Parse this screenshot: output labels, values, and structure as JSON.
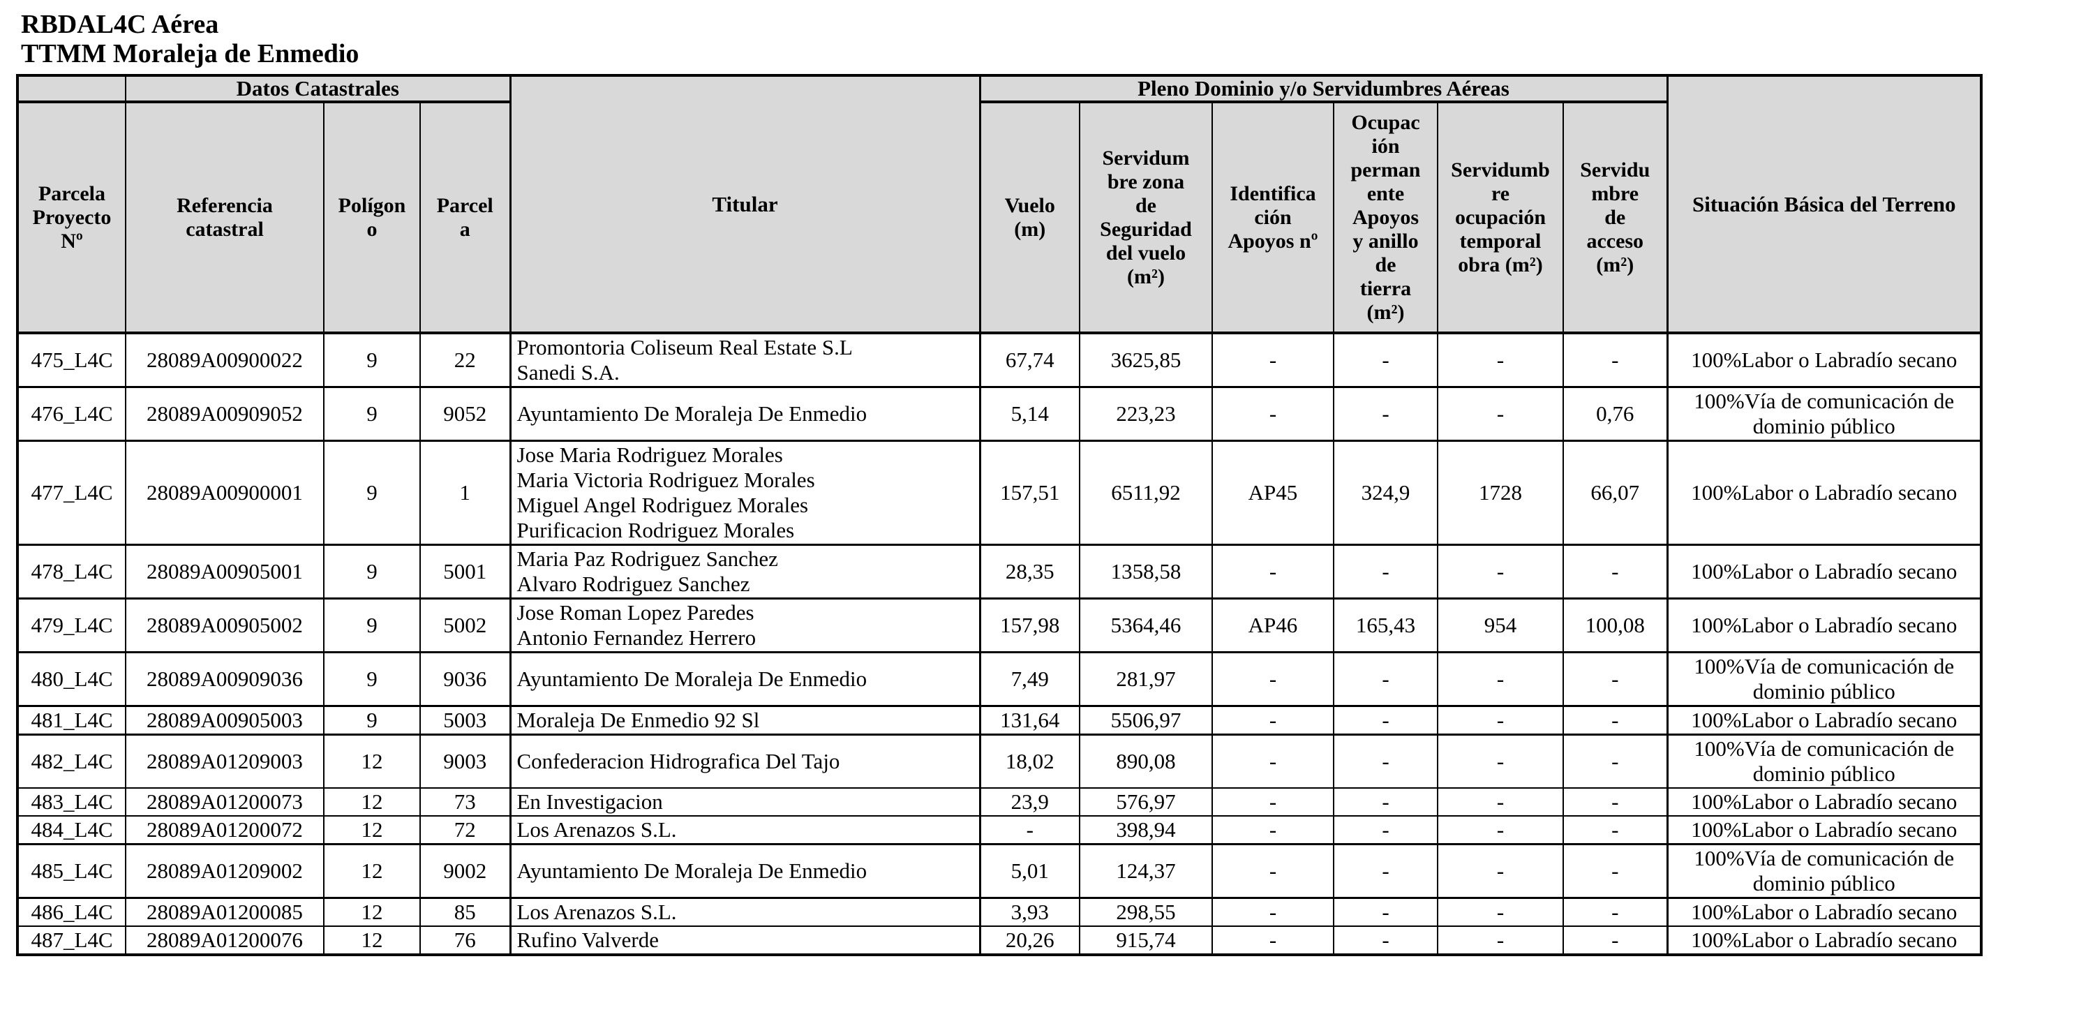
{
  "doc": {
    "title_line1": "RBDAL4C Aérea",
    "title_line2": "TTMM Moraleja de Enmedio"
  },
  "table": {
    "group_headers": {
      "datos": "Datos Catastrales",
      "pleno": "Pleno Dominio y/o Servidumbres Aéreas"
    },
    "columns": [
      {
        "key": "parcela_proyecto",
        "label": "Parcela\nProyecto\nNº"
      },
      {
        "key": "referencia_catastral",
        "label": "Referencia\ncatastral"
      },
      {
        "key": "poligono",
        "label": "Polígon\no"
      },
      {
        "key": "parcela",
        "label": "Parcel\na"
      },
      {
        "key": "titular",
        "label": "Titular"
      },
      {
        "key": "vuelo",
        "label": "Vuelo\n(m)"
      },
      {
        "key": "servidumbre_zona",
        "label": "Servidum\nbre zona\nde\nSeguridad\ndel vuelo\n(m²)"
      },
      {
        "key": "identificacion_apoyos",
        "label": "Identifica\nción\nApoyos nº"
      },
      {
        "key": "ocupacion_permanente",
        "label": "Ocupac\nión\nperman\nente\nApoyos\ny anillo\nde\ntierra\n(m²)"
      },
      {
        "key": "servidumbre_temporal",
        "label": "Servidumb\nre\nocupación\ntemporal\nobra (m²)"
      },
      {
        "key": "servidumbre_acceso",
        "label": "Servidu\nmbre\nde\nacceso\n(m²)"
      },
      {
        "key": "situacion",
        "label": "Situación Básica del Terreno"
      }
    ],
    "rows": [
      {
        "parcela_proyecto": "475_L4C",
        "referencia_catastral": "28089A00900022",
        "poligono": "9",
        "parcela": "22",
        "titular": "Promontoria Coliseum Real Estate S.L\nSanedi S.A.",
        "vuelo": "67,74",
        "servidumbre_zona": "3625,85",
        "identificacion_apoyos": "-",
        "ocupacion_permanente": "-",
        "servidumbre_temporal": "-",
        "servidumbre_acceso": "-",
        "situacion": "100%Labor o Labradío secano"
      },
      {
        "parcela_proyecto": "476_L4C",
        "referencia_catastral": "28089A00909052",
        "poligono": "9",
        "parcela": "9052",
        "titular": "Ayuntamiento De Moraleja De Enmedio",
        "vuelo": "5,14",
        "servidumbre_zona": "223,23",
        "identificacion_apoyos": "-",
        "ocupacion_permanente": "-",
        "servidumbre_temporal": "-",
        "servidumbre_acceso": "0,76",
        "situacion": "100%Vía de comunicación de dominio público"
      },
      {
        "parcela_proyecto": "477_L4C",
        "referencia_catastral": "28089A00900001",
        "poligono": "9",
        "parcela": "1",
        "titular": "Jose Maria Rodriguez Morales\nMaria Victoria Rodriguez Morales\nMiguel Angel Rodriguez Morales\nPurificacion Rodriguez Morales",
        "vuelo": "157,51",
        "servidumbre_zona": "6511,92",
        "identificacion_apoyos": "AP45",
        "ocupacion_permanente": "324,9",
        "servidumbre_temporal": "1728",
        "servidumbre_acceso": "66,07",
        "situacion": "100%Labor o Labradío secano"
      },
      {
        "parcela_proyecto": "478_L4C",
        "referencia_catastral": "28089A00905001",
        "poligono": "9",
        "parcela": "5001",
        "titular": "Maria Paz Rodriguez Sanchez\nAlvaro Rodriguez Sanchez",
        "vuelo": "28,35",
        "servidumbre_zona": "1358,58",
        "identificacion_apoyos": "-",
        "ocupacion_permanente": "-",
        "servidumbre_temporal": "-",
        "servidumbre_acceso": "-",
        "situacion": "100%Labor o Labradío secano"
      },
      {
        "parcela_proyecto": "479_L4C",
        "referencia_catastral": "28089A00905002",
        "poligono": "9",
        "parcela": "5002",
        "titular": "Jose Roman Lopez Paredes\nAntonio Fernandez Herrero",
        "vuelo": "157,98",
        "servidumbre_zona": "5364,46",
        "identificacion_apoyos": "AP46",
        "ocupacion_permanente": "165,43",
        "servidumbre_temporal": "954",
        "servidumbre_acceso": "100,08",
        "situacion": "100%Labor o Labradío secano"
      },
      {
        "parcela_proyecto": "480_L4C",
        "referencia_catastral": "28089A00909036",
        "poligono": "9",
        "parcela": "9036",
        "titular": "Ayuntamiento De Moraleja De Enmedio",
        "vuelo": "7,49",
        "servidumbre_zona": "281,97",
        "identificacion_apoyos": "-",
        "ocupacion_permanente": "-",
        "servidumbre_temporal": "-",
        "servidumbre_acceso": "-",
        "situacion": "100%Vía de comunicación de dominio público"
      },
      {
        "parcela_proyecto": "481_L4C",
        "referencia_catastral": "28089A00905003",
        "poligono": "9",
        "parcela": "5003",
        "titular": "Moraleja De Enmedio 92 Sl",
        "vuelo": "131,64",
        "servidumbre_zona": "5506,97",
        "identificacion_apoyos": "-",
        "ocupacion_permanente": "-",
        "servidumbre_temporal": "-",
        "servidumbre_acceso": "-",
        "situacion": "100%Labor o Labradío secano"
      },
      {
        "parcela_proyecto": "482_L4C",
        "referencia_catastral": "28089A01209003",
        "poligono": "12",
        "parcela": "9003",
        "titular": "Confederacion Hidrografica Del Tajo",
        "vuelo": "18,02",
        "servidumbre_zona": "890,08",
        "identificacion_apoyos": "-",
        "ocupacion_permanente": "-",
        "servidumbre_temporal": "-",
        "servidumbre_acceso": "-",
        "situacion": "100%Vía de comunicación de dominio público"
      },
      {
        "parcela_proyecto": "483_L4C",
        "referencia_catastral": "28089A01200073",
        "poligono": "12",
        "parcela": "73",
        "titular": "En Investigacion",
        "vuelo": "23,9",
        "servidumbre_zona": "576,97",
        "identificacion_apoyos": "-",
        "ocupacion_permanente": "-",
        "servidumbre_temporal": "-",
        "servidumbre_acceso": "-",
        "situacion": "100%Labor o Labradío secano"
      },
      {
        "parcela_proyecto": "484_L4C",
        "referencia_catastral": "28089A01200072",
        "poligono": "12",
        "parcela": "72",
        "titular": "Los Arenazos S.L.",
        "vuelo": "-",
        "servidumbre_zona": "398,94",
        "identificacion_apoyos": "-",
        "ocupacion_permanente": "-",
        "servidumbre_temporal": "-",
        "servidumbre_acceso": "-",
        "situacion": "100%Labor o Labradío secano"
      },
      {
        "parcela_proyecto": "485_L4C",
        "referencia_catastral": "28089A01209002",
        "poligono": "12",
        "parcela": "9002",
        "titular": "Ayuntamiento De Moraleja De Enmedio",
        "vuelo": "5,01",
        "servidumbre_zona": "124,37",
        "identificacion_apoyos": "-",
        "ocupacion_permanente": "-",
        "servidumbre_temporal": "-",
        "servidumbre_acceso": "-",
        "situacion": "100%Vía de comunicación de dominio público"
      },
      {
        "parcela_proyecto": "486_L4C",
        "referencia_catastral": "28089A01200085",
        "poligono": "12",
        "parcela": "85",
        "titular": "Los Arenazos S.L.",
        "vuelo": "3,93",
        "servidumbre_zona": "298,55",
        "identificacion_apoyos": "-",
        "ocupacion_permanente": "-",
        "servidumbre_temporal": "-",
        "servidumbre_acceso": "-",
        "situacion": "100%Labor o Labradío secano"
      },
      {
        "parcela_proyecto": "487_L4C",
        "referencia_catastral": "28089A01200076",
        "poligono": "12",
        "parcela": "76",
        "titular": "Rufino Valverde",
        "vuelo": "20,26",
        "servidumbre_zona": "915,74",
        "identificacion_apoyos": "-",
        "ocupacion_permanente": "-",
        "servidumbre_temporal": "-",
        "servidumbre_acceso": "-",
        "situacion": "100%Labor o Labradío secano"
      }
    ]
  }
}
